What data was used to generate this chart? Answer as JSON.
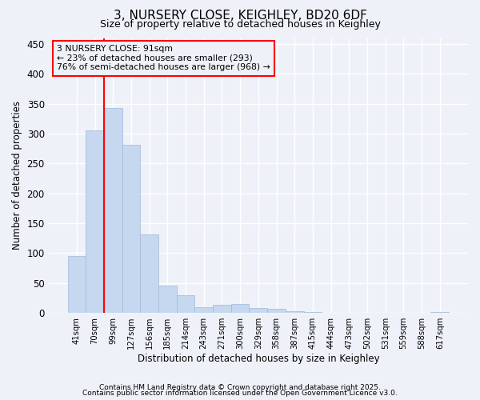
{
  "title1": "3, NURSERY CLOSE, KEIGHLEY, BD20 6DF",
  "title2": "Size of property relative to detached houses in Keighley",
  "xlabel": "Distribution of detached houses by size in Keighley",
  "ylabel": "Number of detached properties",
  "categories": [
    "41sqm",
    "70sqm",
    "99sqm",
    "127sqm",
    "156sqm",
    "185sqm",
    "214sqm",
    "243sqm",
    "271sqm",
    "300sqm",
    "329sqm",
    "358sqm",
    "387sqm",
    "415sqm",
    "444sqm",
    "473sqm",
    "502sqm",
    "531sqm",
    "559sqm",
    "588sqm",
    "617sqm"
  ],
  "values": [
    95,
    305,
    343,
    282,
    132,
    46,
    30,
    10,
    13,
    15,
    8,
    7,
    3,
    1,
    0,
    0,
    0,
    0,
    0,
    0,
    1
  ],
  "bar_color": "#c5d8f0",
  "bar_edge_color": "#a0b8d8",
  "red_line_x": 2.0,
  "annotation_lines": [
    "3 NURSERY CLOSE: 91sqm",
    "← 23% of detached houses are smaller (293)",
    "76% of semi-detached houses are larger (968) →"
  ],
  "ylim": [
    0,
    460
  ],
  "yticks": [
    0,
    50,
    100,
    150,
    200,
    250,
    300,
    350,
    400,
    450
  ],
  "background_color": "#eef2f8",
  "grid_color": "#ffffff",
  "title_fontsize": 11,
  "subtitle_fontsize": 9,
  "footer1": "Contains HM Land Registry data © Crown copyright and database right 2025.",
  "footer2": "Contains public sector information licensed under the Open Government Licence v3.0."
}
